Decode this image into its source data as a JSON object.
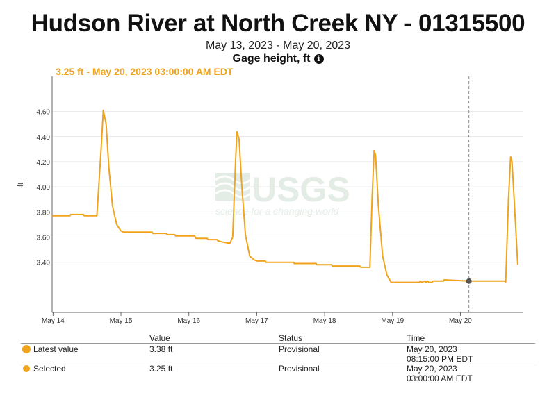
{
  "header": {
    "title": "Hudson River at North Creek NY - 01315500",
    "date_range": "May 13, 2023 - May 20, 2023",
    "parameter": "Gage height, ft",
    "info_icon_glyph": "i"
  },
  "tooltip": {
    "text": "3.25 ft - May 20, 2023 03:00:00 AM EDT"
  },
  "watermark": {
    "logo": "USGS",
    "tagline": "science for a changing world"
  },
  "chart_data": {
    "type": "line",
    "title": "Hudson River at North Creek NY - 01315500",
    "ylabel": "ft",
    "ylim": [
      3.0,
      4.88
    ],
    "yticks": [
      3.4,
      3.6,
      3.8,
      4.0,
      4.2,
      4.4,
      4.6
    ],
    "ytick_labels": [
      "3.40",
      "3.60",
      "3.80",
      "4.00",
      "4.20",
      "4.40",
      "4.60"
    ],
    "xlim": [
      "2023-05-13T23:40",
      "2023-05-20T22:00"
    ],
    "xticks": [
      "2023-05-14T00:00",
      "2023-05-15T00:00",
      "2023-05-16T00:00",
      "2023-05-17T00:00",
      "2023-05-18T00:00",
      "2023-05-19T00:00",
      "2023-05-20T00:00"
    ],
    "xtick_labels": [
      "May 14",
      "May 15",
      "May 16",
      "May 17",
      "May 18",
      "May 19",
      "May 20"
    ],
    "grid": true,
    "series": [
      {
        "color": "#f0a31c",
        "points": [
          [
            "2023-05-13T23:40",
            3.78
          ],
          [
            "2023-05-13T23:55",
            3.77
          ],
          [
            "2023-05-14T06:00",
            3.77
          ],
          [
            "2023-05-14T06:15",
            3.78
          ],
          [
            "2023-05-14T10:45",
            3.78
          ],
          [
            "2023-05-14T11:00",
            3.77
          ],
          [
            "2023-05-14T15:30",
            3.77
          ],
          [
            "2023-05-14T17:00",
            4.3
          ],
          [
            "2023-05-14T17:45",
            4.61
          ],
          [
            "2023-05-14T18:45",
            4.5
          ],
          [
            "2023-05-14T19:45",
            4.15
          ],
          [
            "2023-05-14T21:00",
            3.85
          ],
          [
            "2023-05-14T22:30",
            3.7
          ],
          [
            "2023-05-15T00:00",
            3.65
          ],
          [
            "2023-05-15T01:00",
            3.64
          ],
          [
            "2023-05-15T11:00",
            3.64
          ],
          [
            "2023-05-15T11:15",
            3.63
          ],
          [
            "2023-05-15T16:00",
            3.63
          ],
          [
            "2023-05-15T16:15",
            3.62
          ],
          [
            "2023-05-15T19:00",
            3.62
          ],
          [
            "2023-05-15T19:15",
            3.61
          ],
          [
            "2023-05-16T02:00",
            3.61
          ],
          [
            "2023-05-16T02:15",
            3.6
          ],
          [
            "2023-05-16T02:30",
            3.59
          ],
          [
            "2023-05-16T06:30",
            3.59
          ],
          [
            "2023-05-16T06:45",
            3.58
          ],
          [
            "2023-05-16T10:00",
            3.58
          ],
          [
            "2023-05-16T10:15",
            3.57
          ],
          [
            "2023-05-16T12:00",
            3.56
          ],
          [
            "2023-05-16T14:30",
            3.55
          ],
          [
            "2023-05-16T15:30",
            3.6
          ],
          [
            "2023-05-16T16:30",
            4.2
          ],
          [
            "2023-05-16T17:00",
            4.44
          ],
          [
            "2023-05-16T17:45",
            4.38
          ],
          [
            "2023-05-16T18:45",
            4.0
          ],
          [
            "2023-05-16T20:00",
            3.62
          ],
          [
            "2023-05-16T21:30",
            3.45
          ],
          [
            "2023-05-16T23:00",
            3.42
          ],
          [
            "2023-05-17T00:00",
            3.41
          ],
          [
            "2023-05-17T03:00",
            3.41
          ],
          [
            "2023-05-17T03:15",
            3.4
          ],
          [
            "2023-05-17T13:00",
            3.4
          ],
          [
            "2023-05-17T13:15",
            3.39
          ],
          [
            "2023-05-17T21:00",
            3.39
          ],
          [
            "2023-05-17T21:15",
            3.38
          ],
          [
            "2023-05-18T02:30",
            3.38
          ],
          [
            "2023-05-18T02:45",
            3.37
          ],
          [
            "2023-05-18T12:30",
            3.37
          ],
          [
            "2023-05-18T12:45",
            3.36
          ],
          [
            "2023-05-18T16:00",
            3.36
          ],
          [
            "2023-05-18T16:45",
            3.9
          ],
          [
            "2023-05-18T17:30",
            4.29
          ],
          [
            "2023-05-18T18:00",
            4.25
          ],
          [
            "2023-05-18T19:00",
            3.85
          ],
          [
            "2023-05-18T20:30",
            3.45
          ],
          [
            "2023-05-18T22:00",
            3.3
          ],
          [
            "2023-05-18T23:30",
            3.24
          ],
          [
            "2023-05-19T09:30",
            3.24
          ],
          [
            "2023-05-19T09:45",
            3.25
          ],
          [
            "2023-05-19T10:15",
            3.24
          ],
          [
            "2023-05-19T11:30",
            3.25
          ],
          [
            "2023-05-19T11:45",
            3.24
          ],
          [
            "2023-05-19T12:30",
            3.25
          ],
          [
            "2023-05-19T12:45",
            3.24
          ],
          [
            "2023-05-19T14:00",
            3.24
          ],
          [
            "2023-05-19T14:15",
            3.25
          ],
          [
            "2023-05-19T18:00",
            3.25
          ],
          [
            "2023-05-19T18:15",
            3.26
          ],
          [
            "2023-05-20T03:00",
            3.25
          ],
          [
            "2023-05-20T15:45",
            3.25
          ],
          [
            "2023-05-20T16:00",
            3.24
          ],
          [
            "2023-05-20T17:00",
            3.9
          ],
          [
            "2023-05-20T17:45",
            4.24
          ],
          [
            "2023-05-20T18:15",
            4.2
          ],
          [
            "2023-05-20T19:00",
            3.9
          ],
          [
            "2023-05-20T20:15",
            3.38
          ]
        ]
      }
    ],
    "selected_point": [
      "2023-05-20T03:00",
      3.25
    ]
  },
  "table": {
    "headers": [
      "Value",
      "Status",
      "Time"
    ],
    "rows": [
      {
        "label": "Latest value",
        "value": "3.38 ft",
        "status": "Provisional",
        "time_date": "May 20, 2023",
        "time_clock": "08:15:00 PM EDT"
      },
      {
        "label": "Selected",
        "value": "3.25 ft",
        "status": "Provisional",
        "time_date": "May 20, 2023",
        "time_clock": "03:00:00 AM EDT"
      }
    ]
  },
  "colors": {
    "series": "#f0a31c",
    "grid": "#e6e6e6",
    "axis": "#666666",
    "selected_marker": "#555555",
    "watermark": "#e3ece5"
  }
}
